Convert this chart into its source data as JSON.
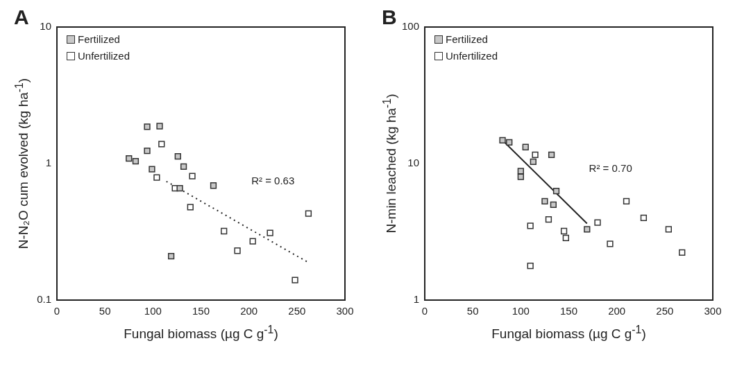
{
  "chart_data": [
    {
      "type": "scatter",
      "title": "A",
      "xlabel": "Fungal biomass (µg C g$^{-1}$)",
      "ylabel": "N-N₂O cum evolved (kg ha$^{-1}$)",
      "xlim": [
        0,
        300
      ],
      "xticks": [
        0,
        50,
        100,
        150,
        200,
        250,
        300
      ],
      "ylim": [
        0.1,
        10
      ],
      "yticks": [
        0.1,
        1,
        10
      ],
      "log": "y",
      "legend": "top left",
      "marker": "square",
      "annotations": [
        "R² = 0.63"
      ],
      "series": [
        {
          "name": "Fertilized",
          "color": "#c8c8c8",
          "x": [
            94,
            107,
            94,
            75,
            82,
            99,
            126,
            132,
            128,
            163,
            119
          ],
          "values": [
            1.86,
            1.88,
            1.24,
            1.09,
            1.04,
            0.91,
            1.13,
            0.95,
            0.66,
            0.69,
            0.21
          ]
        },
        {
          "name": "Unfertilized",
          "color": "#ffffff",
          "x": [
            109,
            105,
            104,
            141,
            123,
            139,
            174,
            222,
            204,
            188,
            262,
            248
          ],
          "values": [
            1.39,
            null,
            0.79,
            0.81,
            0.66,
            0.48,
            0.32,
            0.31,
            0.27,
            0.23,
            0.43,
            0.14
          ]
        },
        {
          "type": "line",
          "color": "#222222",
          "line_style": "dotted",
          "marker": "none",
          "x": [
            114,
            261
          ],
          "values": [
            0.74,
            0.19
          ]
        }
      ]
    },
    {
      "type": "scatter",
      "title": "B",
      "xlabel": "Fungal biomass (µg C g$^{-1}$)",
      "ylabel": "N-min leached (kg ha$^{-1}$)",
      "xlim": [
        0,
        300
      ],
      "xticks": [
        0,
        50,
        100,
        150,
        200,
        250,
        300
      ],
      "ylim": [
        1,
        100
      ],
      "yticks": [
        1,
        10,
        100
      ],
      "log": "y",
      "legend": "top left",
      "marker": "square",
      "annotations": [
        "R² = 0.70"
      ],
      "series": [
        {
          "name": "Fertilized",
          "color": "#c8c8c8",
          "x": [
            81,
            88,
            105,
            132,
            113,
            100,
            100,
            137,
            125,
            134,
            169
          ],
          "values": [
            14.8,
            14.3,
            13.2,
            11.6,
            10.3,
            8.8,
            8.0,
            6.3,
            5.3,
            5.0,
            3.3
          ]
        },
        {
          "name": "Unfertilized",
          "color": "#ffffff",
          "x": [
            115,
            210,
            228,
            254,
            268,
            180,
            193,
            129,
            110,
            145,
            147,
            110
          ],
          "values": [
            11.6,
            5.3,
            4.0,
            3.3,
            2.23,
            3.7,
            2.58,
            3.9,
            3.5,
            3.2,
            2.85,
            1.78
          ]
        },
        {
          "type": "line",
          "color": "#222222",
          "line_style": "solid",
          "marker": "none",
          "x": [
            81,
            169
          ],
          "values": [
            14.8,
            3.64
          ]
        }
      ]
    }
  ]
}
